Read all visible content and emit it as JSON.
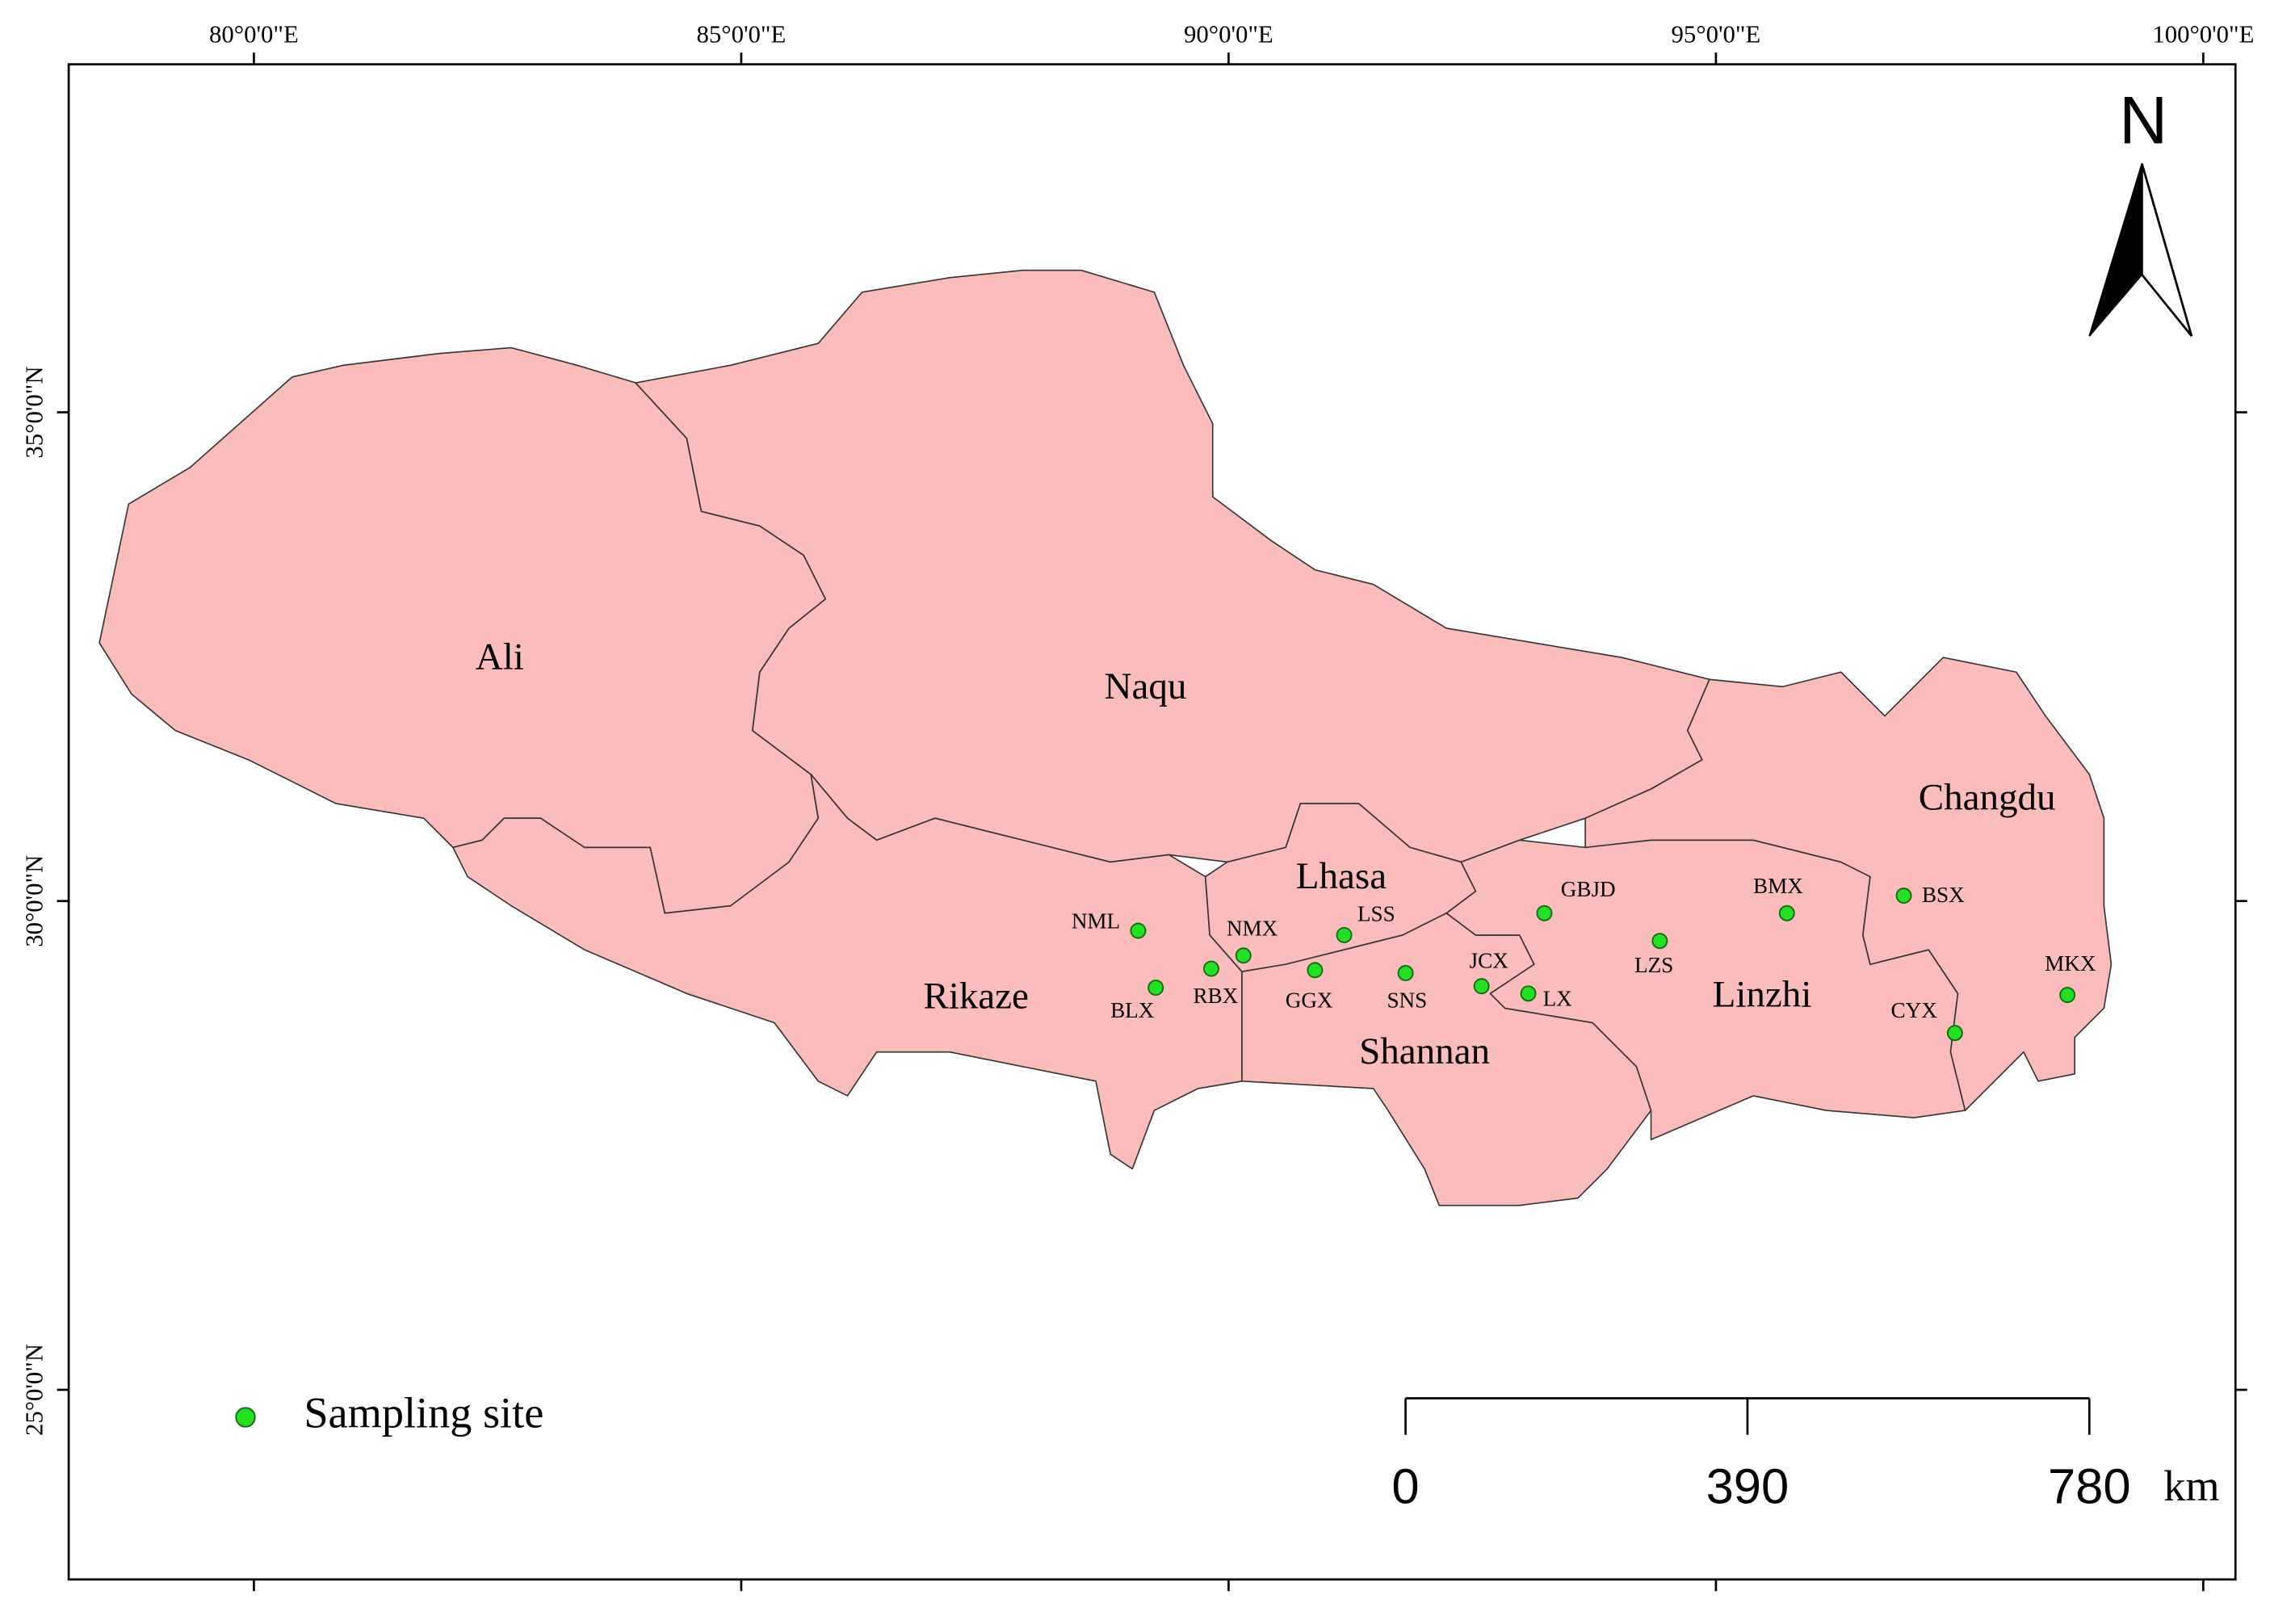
{
  "map": {
    "xticks": [
      {
        "value": 80,
        "label": "80°0'0\"E"
      },
      {
        "value": 85,
        "label": "85°0'0\"E"
      },
      {
        "value": 90,
        "label": "90°0'0\"E"
      },
      {
        "value": 95,
        "label": "95°0'0\"E"
      },
      {
        "value": 100,
        "label": "100°0'0\"E"
      }
    ],
    "xlim": [
      78.1,
      100.33
    ],
    "yticks": [
      {
        "value": 35,
        "label": "35°0'0\"N"
      },
      {
        "value": 30,
        "label": "30°0'0\"N"
      },
      {
        "value": 25,
        "label": "25°0'0\"N"
      }
    ],
    "ylim": [
      23.06,
      38.56
    ],
    "north": "N",
    "regions": [
      "Ali",
      "Naqu",
      "Changdu",
      "Lhasa",
      "Rikaze",
      "Shannan",
      "Linzhi"
    ],
    "sites": [
      "NML",
      "NMX",
      "LSS",
      "RBX",
      "BLX",
      "GGX",
      "SNS",
      "JCX",
      "LX",
      "GBJD",
      "LZS",
      "BMX",
      "BSX",
      "CYX",
      "MKX"
    ],
    "legend": "Sampling site",
    "scale_bar": {
      "ticks": [
        0,
        390,
        780
      ],
      "unit": "km"
    }
  }
}
